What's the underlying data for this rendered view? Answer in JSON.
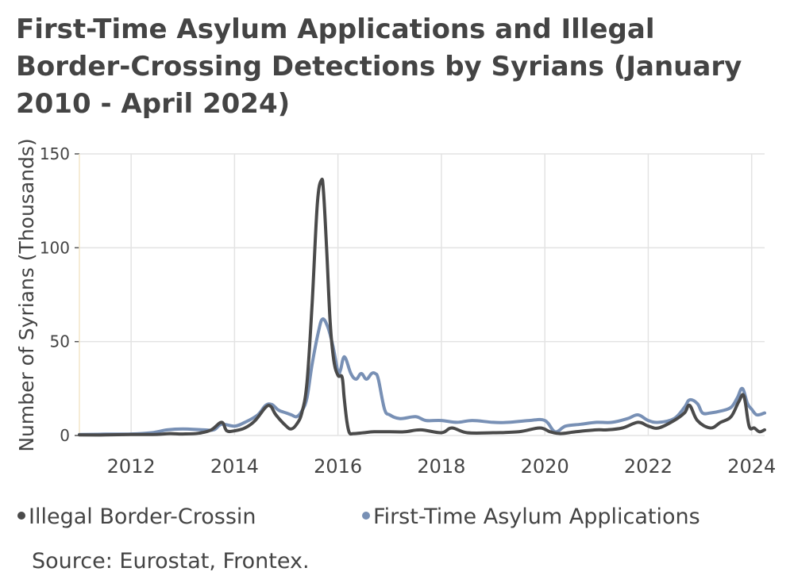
{
  "chart_data": {
    "type": "line",
    "title": "First-Time Asylum Applications and Illegal Border-Crossing Detections by Syrians (January 2010 - April 2024)",
    "xlabel": "",
    "ylabel": "Number of Syrians (Thousands)",
    "xlim": [
      2011.0,
      2024.25
    ],
    "ylim": [
      0,
      150
    ],
    "xticks": [
      2012,
      2014,
      2016,
      2018,
      2020,
      2022,
      2024
    ],
    "yticks": [
      0,
      50,
      100,
      150
    ],
    "grid": true,
    "legend_position": "bottom",
    "series": [
      {
        "name": "Illegal Border-Crossin",
        "color": "#4a4a4a",
        "x": [
          2011.0,
          2011.5,
          2012.0,
          2012.5,
          2012.75,
          2013.0,
          2013.3,
          2013.55,
          2013.75,
          2013.85,
          2014.0,
          2014.2,
          2014.4,
          2014.6,
          2014.7,
          2014.8,
          2015.0,
          2015.1,
          2015.2,
          2015.3,
          2015.4,
          2015.5,
          2015.6,
          2015.68,
          2015.72,
          2015.78,
          2015.85,
          2015.92,
          2016.0,
          2016.08,
          2016.12,
          2016.17,
          2016.22,
          2016.3,
          2016.5,
          2016.7,
          2017.0,
          2017.3,
          2017.6,
          2018.0,
          2018.2,
          2018.5,
          2019.0,
          2019.5,
          2019.9,
          2020.1,
          2020.3,
          2020.6,
          2021.0,
          2021.2,
          2021.5,
          2021.8,
          2022.0,
          2022.2,
          2022.5,
          2022.7,
          2022.8,
          2022.95,
          2023.2,
          2023.4,
          2023.6,
          2023.75,
          2023.85,
          2023.95,
          2024.05,
          2024.15,
          2024.25
        ],
        "y": [
          0.3,
          0.3,
          0.5,
          0.6,
          1,
          0.8,
          1.2,
          3,
          7,
          2.5,
          2.5,
          4,
          8,
          15,
          15.5,
          11,
          5,
          3.5,
          6,
          12,
          28,
          70,
          123,
          136,
          130,
          100,
          60,
          40,
          32,
          31,
          20,
          8,
          1.5,
          1,
          1.5,
          2,
          2,
          2,
          3,
          1.5,
          4,
          1.5,
          1.5,
          2,
          4,
          2,
          1,
          2,
          3,
          3,
          4,
          7,
          5,
          4,
          8,
          12,
          16,
          8,
          4,
          7,
          10,
          18,
          21,
          5,
          4,
          2,
          3
        ]
      },
      {
        "name": "First-Time Asylum Applications",
        "color": "#7890b5",
        "x": [
          2011.0,
          2011.5,
          2012.0,
          2012.4,
          2012.7,
          2013.0,
          2013.4,
          2013.6,
          2013.75,
          2014.0,
          2014.2,
          2014.45,
          2014.6,
          2014.72,
          2014.85,
          2015.0,
          2015.1,
          2015.2,
          2015.3,
          2015.4,
          2015.5,
          2015.62,
          2015.7,
          2015.8,
          2015.9,
          2016.0,
          2016.05,
          2016.1,
          2016.15,
          2016.25,
          2016.35,
          2016.45,
          2016.55,
          2016.65,
          2016.72,
          2016.78,
          2016.9,
          2017.0,
          2017.2,
          2017.5,
          2017.7,
          2018.0,
          2018.3,
          2018.6,
          2019.0,
          2019.3,
          2019.7,
          2020.0,
          2020.2,
          2020.4,
          2020.7,
          2021.0,
          2021.3,
          2021.6,
          2021.8,
          2022.0,
          2022.2,
          2022.5,
          2022.7,
          2022.8,
          2022.95,
          2023.05,
          2023.2,
          2023.4,
          2023.6,
          2023.72,
          2023.82,
          2023.92,
          2024.0,
          2024.1,
          2024.25
        ],
        "y": [
          0.5,
          0.7,
          0.8,
          1.5,
          3,
          3.5,
          3,
          3,
          6,
          5,
          7,
          11,
          16,
          16.5,
          13.5,
          12,
          11,
          10,
          13,
          20,
          38,
          55,
          62,
          58,
          48,
          34,
          35,
          41,
          41,
          33,
          30,
          33,
          30,
          33,
          33,
          30,
          14,
          11,
          9,
          10,
          8,
          8,
          7,
          8,
          7,
          7,
          8,
          8,
          2,
          5,
          6,
          7,
          7,
          9,
          11,
          8,
          7,
          9,
          15,
          19,
          17,
          12,
          12,
          13,
          15,
          20,
          25,
          17,
          14,
          11,
          12
        ]
      }
    ],
    "annotations": [
      "Source: Eurostat, Frontex."
    ]
  }
}
